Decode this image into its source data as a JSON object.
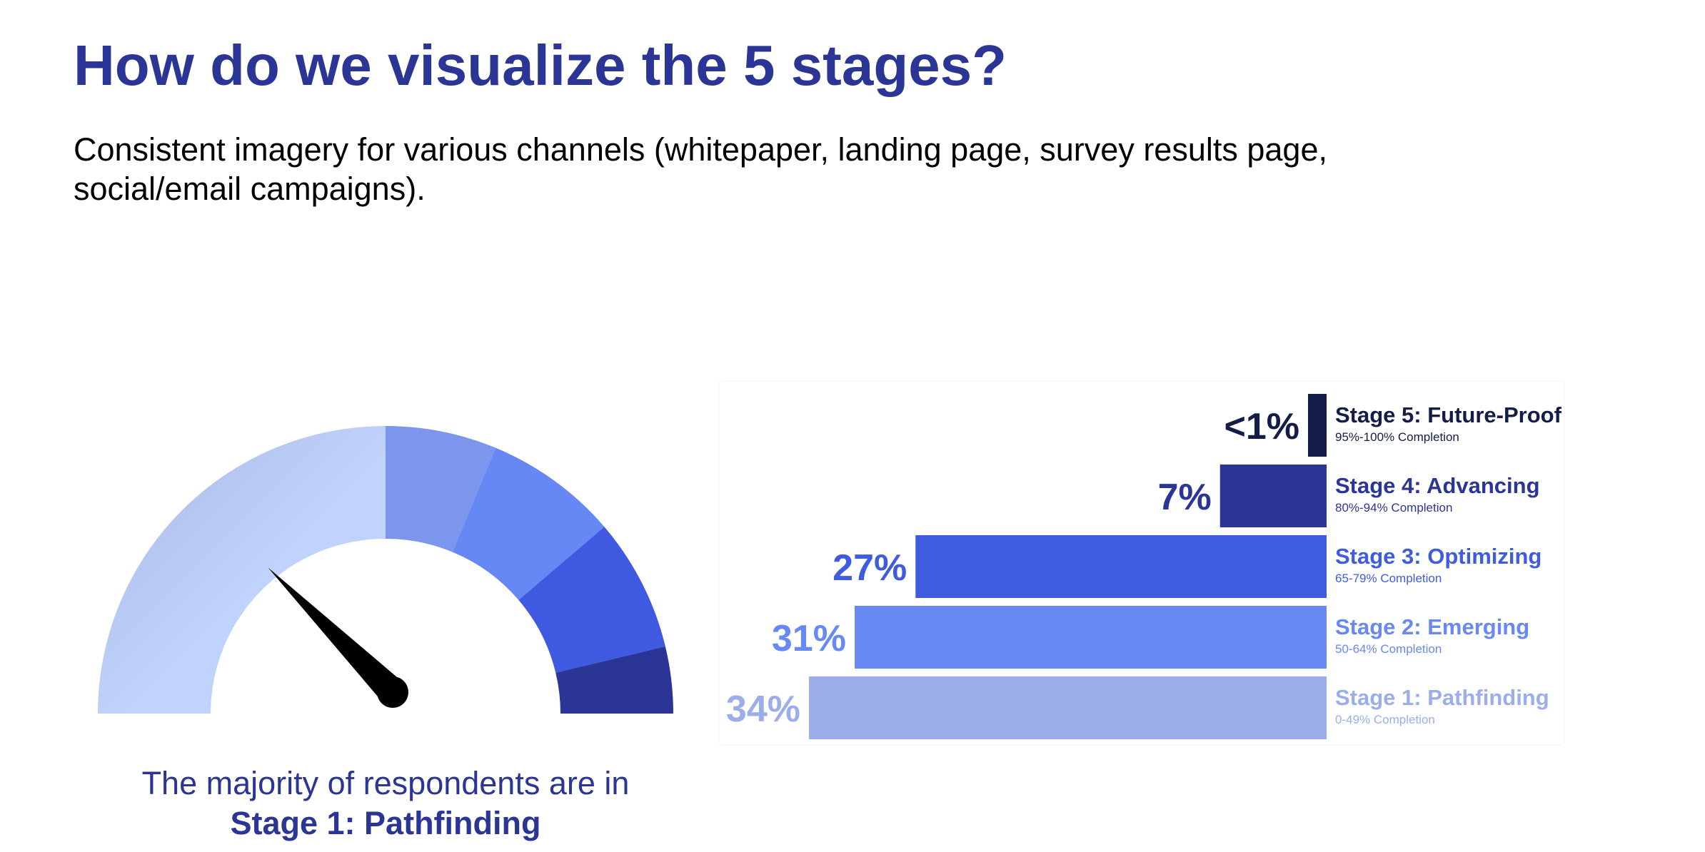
{
  "slide": {
    "title": "How do we visualize the 5 stages?",
    "subtitle": "Consistent imagery for various channels (whitepaper, landing page, survey results page, social/email campaigns)."
  },
  "gauge": {
    "caption_line1": "The majority of respondents are in",
    "caption_line2": "Stage 1: Pathfinding",
    "segments": [
      {
        "stage": "Stage 1",
        "share": 0.5,
        "color": "#c0d3fd",
        "gradient_from": "#a6b6e2"
      },
      {
        "stage": "Stage 2",
        "share": 0.125,
        "color": "#7b96ec"
      },
      {
        "stage": "Stage 3",
        "share": 0.15,
        "color": "#6688f5"
      },
      {
        "stage": "Stage 4",
        "share": 0.15,
        "color": "#3f5ae0"
      },
      {
        "stage": "Stage 5",
        "share": 0.075,
        "color": "#2b3595"
      }
    ],
    "needle_position": 0.25,
    "needle_color": "#000000"
  },
  "chart_data": {
    "type": "bar",
    "orientation": "horizontal",
    "title": "",
    "categories": [
      "Stage 5: Future-Proof",
      "Stage 4: Advancing",
      "Stage 3: Optimizing",
      "Stage 2: Emerging",
      "Stage 1: Pathfinding"
    ],
    "subtitles": [
      "95%-100% Completion",
      "80%-94% Completion",
      "65-79% Completion",
      "50-64% Completion",
      "0-49% Completion"
    ],
    "values": [
      0.5,
      7,
      27,
      31,
      34
    ],
    "value_labels": [
      "<1%",
      "7%",
      "27%",
      "31%",
      "34%"
    ],
    "colors": [
      "#141c48",
      "#2b3595",
      "#3f5ce0",
      "#6888f3",
      "#9baeeb"
    ],
    "xlim": [
      0,
      34
    ],
    "grid": false
  }
}
